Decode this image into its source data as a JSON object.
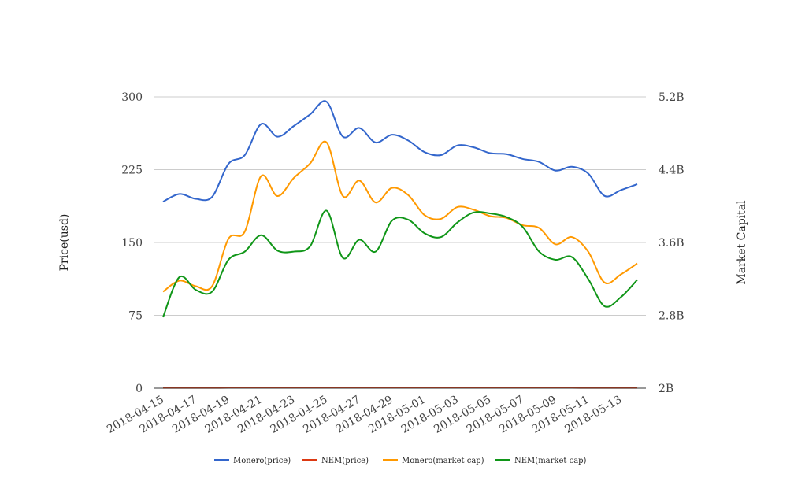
{
  "chart_data": {
    "type": "line",
    "title": "",
    "ylabel_left": "Price(usd)",
    "ylabel_right": "Market Capital",
    "x_tick_labels": [
      "2018-04-15",
      "2018-04-17",
      "2018-04-19",
      "2018-04-21",
      "2018-04-23",
      "2018-04-25",
      "2018-04-27",
      "2018-04-29",
      "2018-05-01",
      "2018-05-03",
      "2018-05-05",
      "2018-05-07",
      "2018-05-09",
      "2018-05-11",
      "2018-05-13"
    ],
    "y_left_ticks": [
      "0",
      "75",
      "150",
      "225",
      "300"
    ],
    "y_right_ticks": [
      "2B",
      "2.8B",
      "3.6B",
      "4.4B",
      "5.2B"
    ],
    "y_left_range": [
      0,
      300
    ],
    "y_right_range_billions": [
      2.0,
      5.2
    ],
    "grid": "horizontal",
    "legend_position": "bottom",
    "x": [
      "2018-04-15",
      "2018-04-16",
      "2018-04-17",
      "2018-04-18",
      "2018-04-19",
      "2018-04-20",
      "2018-04-21",
      "2018-04-22",
      "2018-04-23",
      "2018-04-24",
      "2018-04-25",
      "2018-04-26",
      "2018-04-27",
      "2018-04-28",
      "2018-04-29",
      "2018-04-30",
      "2018-05-01",
      "2018-05-02",
      "2018-05-03",
      "2018-05-04",
      "2018-05-05",
      "2018-05-06",
      "2018-05-07",
      "2018-05-08",
      "2018-05-09",
      "2018-05-10",
      "2018-05-11",
      "2018-05-12",
      "2018-05-13",
      "2018-05-14"
    ],
    "series": [
      {
        "name": "Monero(price)",
        "axis": "left",
        "color": "#3366cc",
        "values": [
          192,
          200,
          195,
          197,
          231,
          240,
          272,
          259,
          270,
          282,
          295,
          259,
          268,
          253,
          261,
          255,
          243,
          240,
          250,
          248,
          242,
          241,
          236,
          233,
          224,
          228,
          221,
          198,
          204,
          210
        ]
      },
      {
        "name": "NEM(price)",
        "axis": "left",
        "color": "#dc3912",
        "values": [
          0.28,
          0.3,
          0.29,
          0.3,
          0.36,
          0.38,
          0.43,
          0.4,
          0.43,
          0.45,
          0.5,
          0.4,
          0.44,
          0.4,
          0.46,
          0.46,
          0.43,
          0.41,
          0.44,
          0.46,
          0.45,
          0.45,
          0.44,
          0.39,
          0.36,
          0.37,
          0.32,
          0.27,
          0.29,
          0.31
        ]
      },
      {
        "name": "Monero(market cap)",
        "axis": "right",
        "color": "#ff9900",
        "values": [
          3.06,
          3.18,
          3.12,
          3.12,
          3.64,
          3.72,
          4.33,
          4.11,
          4.31,
          4.47,
          4.7,
          4.11,
          4.28,
          4.04,
          4.2,
          4.12,
          3.9,
          3.86,
          3.99,
          3.96,
          3.89,
          3.87,
          3.79,
          3.76,
          3.58,
          3.66,
          3.5,
          3.16,
          3.25,
          3.37
        ]
      },
      {
        "name": "NEM(market cap)",
        "axis": "right",
        "color": "#109618",
        "values": [
          2.78,
          3.22,
          3.08,
          3.06,
          3.41,
          3.5,
          3.68,
          3.51,
          3.5,
          3.56,
          3.95,
          3.43,
          3.63,
          3.5,
          3.84,
          3.85,
          3.7,
          3.66,
          3.82,
          3.93,
          3.92,
          3.88,
          3.77,
          3.5,
          3.41,
          3.44,
          3.2,
          2.9,
          3.0,
          3.19
        ]
      }
    ]
  }
}
